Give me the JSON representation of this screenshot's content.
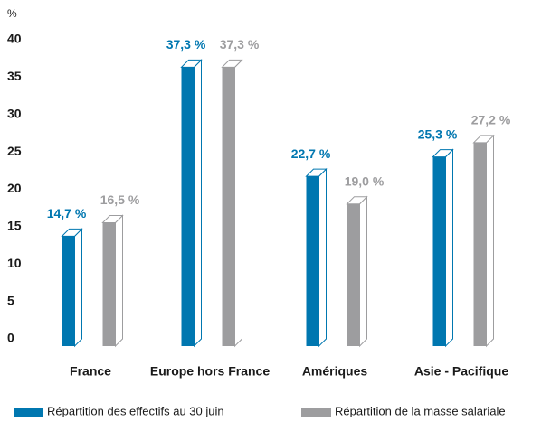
{
  "chart_data": {
    "type": "bar",
    "y_label": "%",
    "categories": [
      "France",
      "Europe hors France",
      "Amériques",
      "Asie - Pacifique"
    ],
    "series": [
      {
        "name": "Répartition des effectifs au 30 juin",
        "color": "#0077b0",
        "values": [
          14.7,
          37.3,
          22.7,
          25.3
        ],
        "value_labels": [
          "14,7 %",
          "37,3 %",
          "22,7 %",
          "25,3 %"
        ]
      },
      {
        "name": "Répartition de la masse salariale",
        "color": "#9d9d9f",
        "values": [
          16.5,
          37.3,
          19.0,
          27.2
        ],
        "value_labels": [
          "16,5 %",
          "37,3 %",
          "19,0 %",
          "27,2 %"
        ]
      }
    ],
    "ylim": [
      0,
      40
    ],
    "yticks": [
      0,
      5,
      10,
      15,
      20,
      25,
      30,
      35,
      40
    ],
    "grid": false,
    "legend": "bottom"
  }
}
